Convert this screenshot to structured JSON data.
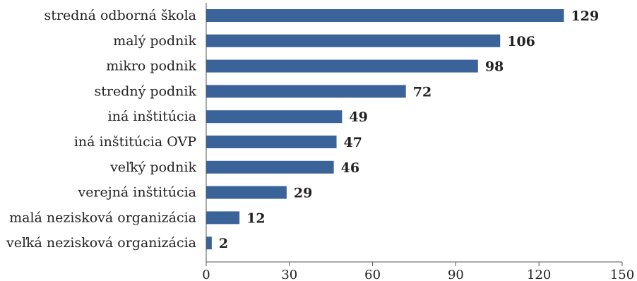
{
  "chart_data": {
    "type": "bar",
    "orientation": "horizontal",
    "categories": [
      "stredná odborná škola",
      "malý podnik",
      "mikro podnik",
      "stredný podnik",
      "iná inštitúcia",
      "iná inštitúcia OVP",
      "veľký podnik",
      "verejná inštitúcia",
      "malá nezisková organizácia",
      "veľká nezisková organizácia"
    ],
    "values": [
      129,
      106,
      98,
      72,
      49,
      47,
      46,
      29,
      12,
      2
    ],
    "value_labels": [
      "129",
      "106",
      "98",
      "72",
      "49",
      "47",
      "46",
      "29",
      "12",
      "2"
    ],
    "xlim": [
      0,
      150
    ],
    "xticks": [
      0,
      30,
      60,
      90,
      120,
      150
    ],
    "xtick_labels": [
      "0",
      "30",
      "60",
      "90",
      "120",
      "150"
    ],
    "bar_color": "#3a6399",
    "grid": false,
    "legend": "none"
  }
}
